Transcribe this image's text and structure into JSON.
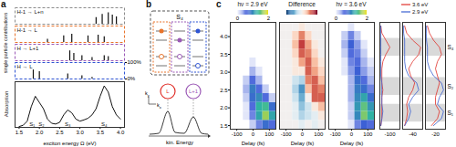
{
  "panel_labels": [
    "a",
    "b",
    "c"
  ],
  "chart_data": [
    {
      "type": "stick",
      "ylabel": "single particle contributions",
      "xlim": [
        1.4,
        4.1
      ],
      "ylim": [
        0,
        100
      ],
      "yticks": [
        {
          "value": 100,
          "label": "100%"
        },
        {
          "value": 0,
          "label": "0%"
        }
      ],
      "tick_labels": "y",
      "series": [
        {
          "name": "H-1 → L+n",
          "color": "#8c8c8c",
          "x": [
            3.4,
            3.55,
            3.7,
            3.8,
            3.9
          ],
          "values": [
            40,
            60,
            70,
            55,
            45
          ]
        },
        {
          "name": "H-1 → L",
          "color": "#e8742c",
          "x": [
            2.2,
            2.6,
            2.8,
            3.2,
            3.45,
            3.6
          ],
          "values": [
            20,
            40,
            50,
            40,
            45,
            35
          ]
        },
        {
          "name": "H → L+1",
          "color": "#9b59b6",
          "x": [
            2.75,
            2.85,
            3.05,
            3.3,
            3.6,
            3.7
          ],
          "values": [
            60,
            45,
            30,
            20,
            30,
            25
          ]
        },
        {
          "name": "H → L",
          "color": "#2f55d4",
          "x": [
            1.85,
            2.0,
            2.7,
            3.05,
            3.3
          ],
          "values": [
            55,
            45,
            30,
            20,
            10
          ]
        }
      ]
    },
    {
      "type": "line",
      "ylabel": "Absorption",
      "xlabel": "exciton energy Ω (eV)",
      "x": [
        1.5,
        1.6,
        1.7,
        1.8,
        1.9,
        2.0,
        2.1,
        2.2,
        2.3,
        2.4,
        2.5,
        2.6,
        2.7,
        2.8,
        2.9,
        3.0,
        3.1,
        3.2,
        3.3,
        3.4,
        3.5,
        3.6,
        3.7,
        3.8,
        3.9,
        4.0
      ],
      "values": [
        0.02,
        0.05,
        0.15,
        0.5,
        0.75,
        0.6,
        0.45,
        0.2,
        0.1,
        0.08,
        0.12,
        0.3,
        0.42,
        0.35,
        0.2,
        0.15,
        0.18,
        0.22,
        0.3,
        0.45,
        0.75,
        1.0,
        0.85,
        0.5,
        0.3,
        0.2
      ],
      "color": "#111111",
      "xlim": [
        1.4,
        4.1
      ],
      "xticks": [
        1.5,
        {
          "value": 2,
          "label": "2.0"
        },
        2.5,
        {
          "value": 3,
          "label": "3.0"
        },
        3.5,
        {
          "value": 4,
          "label": "4.0"
        }
      ],
      "ylim": [
        0,
        1.1
      ],
      "tick_labels": "x",
      "states": [
        {
          "label": "S₁",
          "x": 1.82
        },
        {
          "label": "S₂",
          "x": 2.05
        },
        {
          "label": "S₃",
          "x": 2.7
        },
        {
          "label": "S₄",
          "x": 3.6
        }
      ]
    },
    {
      "type": "heatmap",
      "title": "hν = 2.9 eV",
      "xlabel": "Delay (fs)",
      "x_edges": [
        -140,
        -100,
        -60,
        -20,
        20,
        60,
        100,
        140
      ],
      "y_edges": [
        1.4,
        1.65,
        1.9,
        2.15,
        2.4,
        2.65,
        2.9,
        3.15,
        3.4,
        3.65,
        3.9,
        4.15,
        4.4
      ],
      "cells": [
        [
          0,
          0,
          0,
          0.2,
          0.5,
          0.8,
          0.6
        ],
        [
          0,
          0,
          0.1,
          0.5,
          1.2,
          1.7,
          1.2
        ],
        [
          0,
          0,
          0.1,
          0.6,
          1.3,
          1.4,
          0.8
        ],
        [
          0,
          0,
          0.2,
          0.8,
          1.0,
          0.6,
          0.2
        ],
        [
          0,
          0,
          0.3,
          0.9,
          0.6,
          0.2,
          0
        ],
        [
          0,
          0,
          0.2,
          0.6,
          0.3,
          0,
          0
        ],
        [
          0,
          0,
          0,
          0.3,
          0.1,
          0,
          0
        ],
        [
          0,
          0,
          0,
          0.1,
          0,
          0,
          0
        ],
        [
          0,
          0,
          0,
          0,
          0,
          0,
          0
        ],
        [
          0,
          0,
          0,
          0,
          0,
          0,
          0
        ],
        [
          0,
          0,
          0,
          0,
          0,
          0,
          0
        ],
        [
          0,
          0,
          0,
          0,
          0,
          0,
          0
        ]
      ],
      "xlim": [
        -140,
        140
      ],
      "xticks": [
        -100,
        0,
        100
      ],
      "ylim": [
        1.4,
        4.4
      ],
      "yticks": [
        1.5,
        {
          "value": 2,
          "label": "2.0"
        },
        2.5,
        {
          "value": 3,
          "label": "3.0"
        },
        3.5,
        {
          "value": 4,
          "label": "4.0"
        }
      ],
      "tick_labels": true,
      "colorbar": {
        "range": [
          0,
          2
        ],
        "ticks": [
          0,
          2
        ]
      }
    },
    {
      "type": "heatmap",
      "title": "Difference",
      "xlabel": "Delay (fs)",
      "x_edges": [
        -140,
        -100,
        -60,
        -20,
        20,
        60,
        100,
        140
      ],
      "y_edges": [
        1.4,
        1.65,
        1.9,
        2.15,
        2.4,
        2.65,
        2.9,
        3.15,
        3.4,
        3.65,
        3.9,
        4.15,
        4.4
      ],
      "cells": [
        [
          0,
          0,
          0,
          -0.1,
          0,
          -0.1,
          0
        ],
        [
          0,
          0,
          -0.1,
          -0.3,
          -0.2,
          -0.1,
          0.1
        ],
        [
          0,
          0,
          -0.1,
          -0.4,
          -0.2,
          0.1,
          0.3
        ],
        [
          0,
          0,
          -0.2,
          -0.5,
          0,
          0.6,
          0.6
        ],
        [
          0,
          0,
          -0.3,
          -0.6,
          0.3,
          0.6,
          0.5
        ],
        [
          0,
          0,
          -0.2,
          -0.3,
          0.5,
          0.6,
          0.3
        ],
        [
          0,
          0,
          0.1,
          0.1,
          0.6,
          0.4,
          0.2
        ],
        [
          0,
          0,
          0.1,
          0.4,
          0.6,
          0.3,
          0.1
        ],
        [
          0,
          0,
          0.2,
          0.6,
          0.5,
          0.2,
          0
        ],
        [
          0,
          0,
          0.3,
          0.7,
          0.4,
          0.1,
          0
        ],
        [
          0,
          0,
          0.2,
          0.5,
          0.2,
          0,
          0
        ],
        [
          0,
          0,
          0,
          0.1,
          0,
          0,
          0
        ]
      ],
      "xlim": [
        -140,
        140
      ],
      "xticks": [
        -100,
        0,
        100
      ],
      "ylim": [
        1.4,
        4.4
      ],
      "tick_labels": "x",
      "colorbar": {
        "range": [
          -1,
          1
        ],
        "ticks": []
      }
    },
    {
      "type": "heatmap",
      "title": "hν = 3.6 eV",
      "xlabel": "Delay (fs)",
      "x_edges": [
        -140,
        -100,
        -60,
        -20,
        20,
        60,
        100,
        140
      ],
      "y_edges": [
        1.4,
        1.65,
        1.9,
        2.15,
        2.4,
        2.65,
        2.9,
        3.15,
        3.4,
        3.65,
        3.9,
        4.15,
        4.4
      ],
      "cells": [
        [
          0,
          0,
          0,
          0.1,
          0.5,
          0.7,
          0.6
        ],
        [
          0,
          0,
          0,
          0.2,
          1.0,
          1.6,
          1.3
        ],
        [
          0,
          0,
          0,
          0.2,
          1.1,
          1.5,
          1.1
        ],
        [
          0,
          0,
          0,
          0.3,
          1.0,
          1.2,
          0.8
        ],
        [
          0,
          0,
          0,
          0.3,
          0.9,
          0.8,
          0.5
        ],
        [
          0,
          0,
          0,
          0.3,
          0.8,
          0.6,
          0.3
        ],
        [
          0,
          0,
          0.1,
          0.4,
          0.7,
          0.4,
          0.2
        ],
        [
          0,
          0,
          0.1,
          0.5,
          0.6,
          0.3,
          0.1
        ],
        [
          0,
          0,
          0.2,
          0.6,
          0.5,
          0.2,
          0
        ],
        [
          0,
          0,
          0.3,
          0.7,
          0.4,
          0.1,
          0
        ],
        [
          0,
          0,
          0.2,
          0.5,
          0.2,
          0,
          0
        ],
        [
          0,
          0,
          0,
          0.1,
          0,
          0,
          0
        ]
      ],
      "xlim": [
        -140,
        140
      ],
      "xticks": [
        -100,
        0,
        100
      ],
      "ylim": [
        1.4,
        4.4
      ],
      "tick_labels": "x",
      "colorbar": {
        "range": [
          0,
          2
        ],
        "ticks": [
          0,
          2
        ]
      }
    },
    {
      "type": "line",
      "categories": [
        "-100",
        "-40",
        "-20"
      ],
      "y": [
        1.5,
        1.7,
        1.9,
        2.1,
        2.3,
        2.5,
        2.7,
        2.9,
        3.1,
        3.3,
        3.5,
        3.7,
        3.9,
        4.1,
        4.3
      ],
      "series": [
        {
          "name": "3.6 eV",
          "color": "#e0302a",
          "values": [
            [
              0.05,
              0.1,
              0.1,
              0.1,
              0.1,
              0.15,
              0.1,
              0.1,
              0.1,
              0.15,
              0.3,
              0.5,
              0.3,
              0.1,
              0.05
            ],
            [
              0.1,
              0.2,
              0.25,
              0.2,
              0.3,
              0.5,
              0.6,
              0.4,
              0.3,
              0.5,
              0.8,
              0.9,
              0.5,
              0.2,
              0.1
            ],
            [
              0.3,
              0.6,
              0.7,
              0.5,
              0.5,
              0.6,
              0.7,
              0.6,
              0.5,
              0.6,
              0.8,
              0.7,
              0.4,
              0.2,
              0.1
            ]
          ]
        },
        {
          "name": "2.9 eV",
          "color": "#3a5fd0",
          "values": [
            [
              0.05,
              0.1,
              0.15,
              0.1,
              0.1,
              0.1,
              0.1,
              0.05,
              0.05,
              0.05,
              0.05,
              0.05,
              0.05,
              0.05,
              0.05
            ],
            [
              0.1,
              0.3,
              0.4,
              0.3,
              0.5,
              0.8,
              0.7,
              0.3,
              0.15,
              0.1,
              0.1,
              0.1,
              0.1,
              0.05,
              0.05
            ],
            [
              0.4,
              0.8,
              0.9,
              0.6,
              0.7,
              0.9,
              0.8,
              0.4,
              0.2,
              0.1,
              0.1,
              0.1,
              0.05,
              0.05,
              0.05
            ]
          ]
        }
      ],
      "xlim": [
        0,
        1
      ],
      "ylim": [
        1.4,
        4.4
      ],
      "tick_labels": "x",
      "legend": "top",
      "bands": [
        {
          "label": "S₄",
          "y": [
            3.45,
            3.95
          ]
        },
        {
          "label": "S₂",
          "y": [
            2.35,
            2.85
          ]
        },
        {
          "label": "S₁",
          "y": [
            1.6,
            2.1
          ]
        }
      ]
    }
  ],
  "diagram": {
    "state": "S₄",
    "orbitals": [
      "L",
      "L+1"
    ],
    "momentum_axes": [
      {
        "base": "k",
        "sub": "x"
      },
      {
        "base": "k",
        "sub": "y"
      }
    ],
    "energy_axis": "kin. Energy"
  }
}
